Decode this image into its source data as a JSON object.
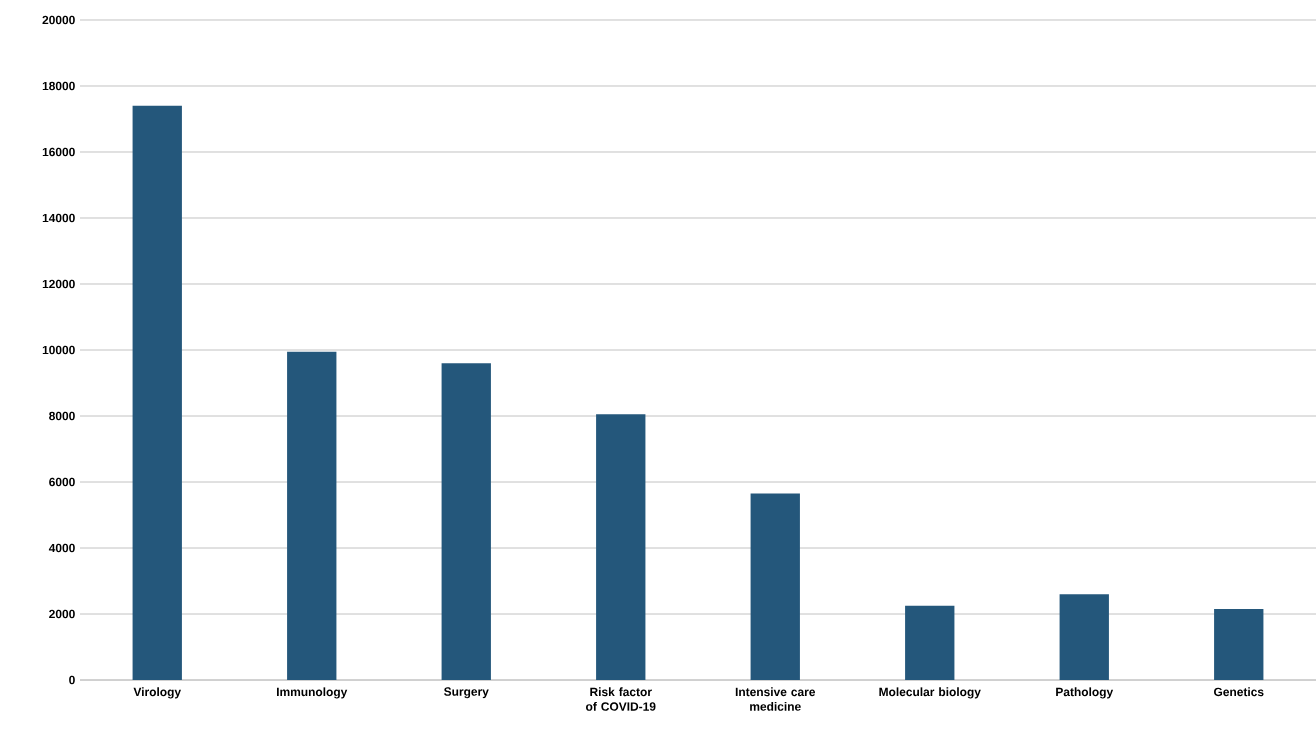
{
  "chart_data": {
    "type": "bar",
    "categories": [
      "Virology",
      "Immunology",
      "Surgery",
      "Risk factor of COVID-19",
      "Intensive care medicine",
      "Molecular biology",
      "Pathology",
      "Genetics"
    ],
    "values": [
      17400,
      9950,
      9600,
      8050,
      5650,
      2250,
      2600,
      2150
    ],
    "color": "#24577b",
    "ylim": [
      0,
      20000
    ],
    "yticks": [
      0,
      2000,
      4000,
      6000,
      8000,
      10000,
      12000,
      14000,
      16000,
      18000,
      20000
    ],
    "grid": "y"
  }
}
